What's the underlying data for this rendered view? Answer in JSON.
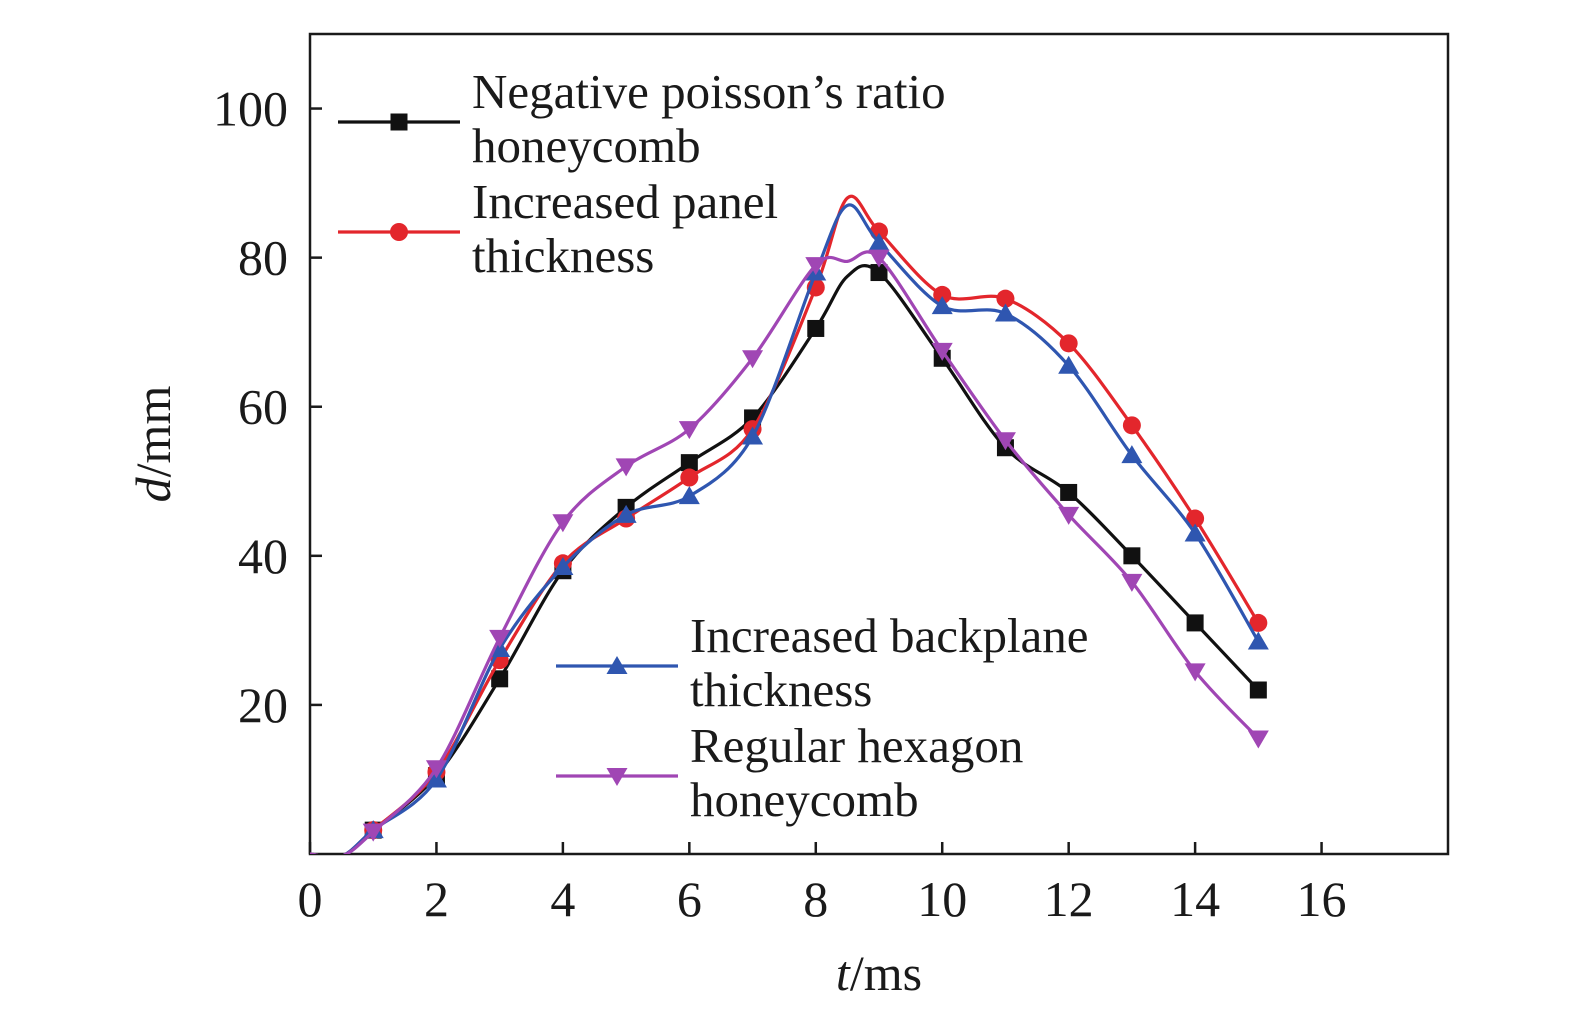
{
  "chart_data": {
    "type": "line",
    "title": "",
    "xlabel": {
      "italic": "t",
      "rest": "/ms"
    },
    "ylabel": {
      "italic": "d",
      "rest": "/mm"
    },
    "xlim": [
      0,
      18
    ],
    "ylim": [
      0,
      110
    ],
    "xticks": [
      0,
      2,
      4,
      6,
      8,
      10,
      12,
      14,
      16
    ],
    "yticks": [
      20,
      40,
      60,
      80,
      100
    ],
    "xtick_labels": [
      "0",
      "2",
      "4",
      "6",
      "8",
      "10",
      "12",
      "14",
      "16"
    ],
    "ytick_labels": [
      "20",
      "40",
      "60",
      "80",
      "100"
    ],
    "grid": false,
    "series": [
      {
        "name": "Negative poisson's ratio honeycomb",
        "legend_lines": [
          "Negative poisson’s ratio",
          "honeycomb"
        ],
        "color": "#111111",
        "marker": "square",
        "x": [
          0,
          0.5,
          1,
          2,
          3,
          4,
          5,
          6,
          7,
          8,
          8.5,
          9,
          10,
          11,
          12,
          13,
          14,
          15
        ],
        "y": [
          0,
          -0.3,
          3.2,
          10.5,
          23.5,
          38,
          46.5,
          52.5,
          58.5,
          70.5,
          77.5,
          78,
          66.5,
          54.5,
          48.5,
          40,
          31,
          22
        ]
      },
      {
        "name": "Increased panel thickness",
        "legend_lines": [
          "Increased panel",
          "thickness"
        ],
        "color": "#e3262c",
        "marker": "circle",
        "x": [
          0,
          0.5,
          1,
          2,
          3,
          4,
          5,
          6,
          7,
          8,
          8.5,
          9,
          10,
          11,
          12,
          13,
          14,
          15
        ],
        "y": [
          0,
          -0.3,
          3.2,
          11,
          26,
          39,
          45,
          50.5,
          57,
          76,
          88,
          83.5,
          75,
          74.5,
          68.5,
          57.5,
          45,
          31
        ]
      },
      {
        "name": "Increased backplane thickness",
        "legend_lines": [
          "Increased backplane",
          "thickness"
        ],
        "color": "#2f56b0",
        "marker": "triangle-up",
        "x": [
          0,
          0.5,
          1,
          2,
          3,
          4,
          5,
          6,
          7,
          8,
          8.5,
          9,
          10,
          11,
          12,
          13,
          14,
          15
        ],
        "y": [
          0,
          -0.3,
          3.2,
          10,
          27.5,
          38.5,
          45.5,
          48,
          56,
          78,
          87,
          82,
          73.5,
          72.5,
          65.5,
          53.5,
          43,
          28.5
        ]
      },
      {
        "name": "Regular hexagon honeycomb",
        "legend_lines": [
          "Regular hexagon",
          "honeycomb"
        ],
        "color": "#a046b4",
        "marker": "triangle-down",
        "x": [
          0,
          0.5,
          1,
          2,
          3,
          4,
          5,
          6,
          7,
          8,
          8.5,
          9,
          10,
          11,
          12,
          13,
          14,
          15
        ],
        "y": [
          0,
          -0.3,
          3,
          11.5,
          29,
          44.5,
          52,
          57,
          66.5,
          79,
          79.5,
          80,
          67.5,
          55.5,
          45.5,
          36.5,
          24.5,
          15.5
        ]
      }
    ]
  }
}
